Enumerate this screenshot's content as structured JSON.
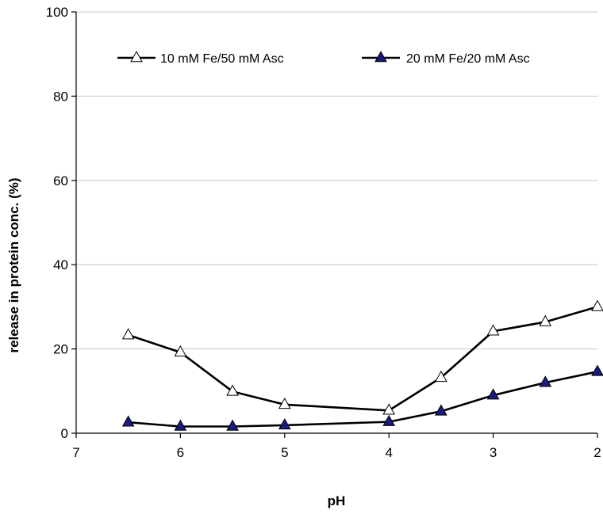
{
  "chart_data": {
    "type": "line",
    "title": "",
    "xlabel": "pH",
    "ylabel": "release in protein conc. (%)",
    "xlim": [
      7,
      2
    ],
    "x_reversed": true,
    "ylim": [
      0,
      100
    ],
    "xticks": [
      7,
      6,
      5,
      4,
      3,
      2
    ],
    "yticks": [
      0,
      20,
      40,
      60,
      80,
      100
    ],
    "grid": "horizontal",
    "legend_position": "top",
    "x": [
      6.5,
      6,
      5.5,
      5,
      4,
      3.5,
      3,
      2.5,
      2
    ],
    "series": [
      {
        "name": "10 mM Fe/50 mM Asc",
        "marker": "open-triangle",
        "color": "#000000",
        "marker_fill": "#ffffff",
        "values": [
          23.3,
          19.2,
          9.9,
          6.8,
          5.4,
          13.2,
          24.2,
          26.4,
          30.0
        ]
      },
      {
        "name": "20 mM Fe/20 mM Asc",
        "marker": "filled-triangle",
        "color": "#000000",
        "marker_fill": "#1a1a80",
        "values": [
          2.6,
          1.6,
          1.6,
          1.9,
          2.7,
          5.2,
          9.0,
          12.0,
          14.6
        ]
      }
    ]
  }
}
